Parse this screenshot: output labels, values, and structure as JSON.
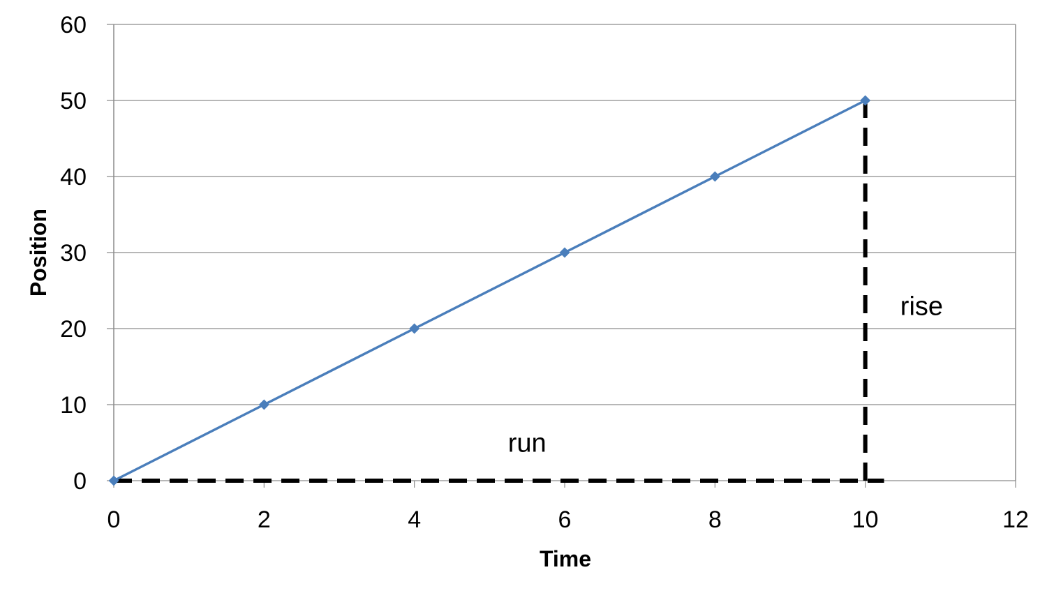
{
  "chart_data": {
    "type": "line",
    "title": "",
    "xlabel": "Time",
    "ylabel": "Position",
    "xlim": [
      0,
      12
    ],
    "ylim": [
      0,
      60
    ],
    "x_ticks": [
      0,
      2,
      4,
      6,
      8,
      10,
      12
    ],
    "y_ticks": [
      0,
      10,
      20,
      30,
      40,
      50,
      60
    ],
    "grid": "horizontal",
    "legend": "none",
    "series": [
      {
        "x": [
          0,
          2,
          4,
          6,
          8,
          10
        ],
        "y": [
          0,
          10,
          20,
          30,
          40,
          50
        ],
        "color": "#4a7ebb",
        "marker": "diamond"
      }
    ],
    "reference_lines": {
      "color": "#000000",
      "style": "dashed",
      "run": {
        "from": [
          0,
          0
        ],
        "to": [
          10.25,
          0
        ]
      },
      "rise": {
        "from": [
          10,
          0
        ],
        "to": [
          10,
          50
        ]
      }
    },
    "annotations": [
      {
        "text": "run",
        "x": 5.5,
        "y": 5
      },
      {
        "text": "rise",
        "x": 10.75,
        "y": 23
      }
    ]
  }
}
